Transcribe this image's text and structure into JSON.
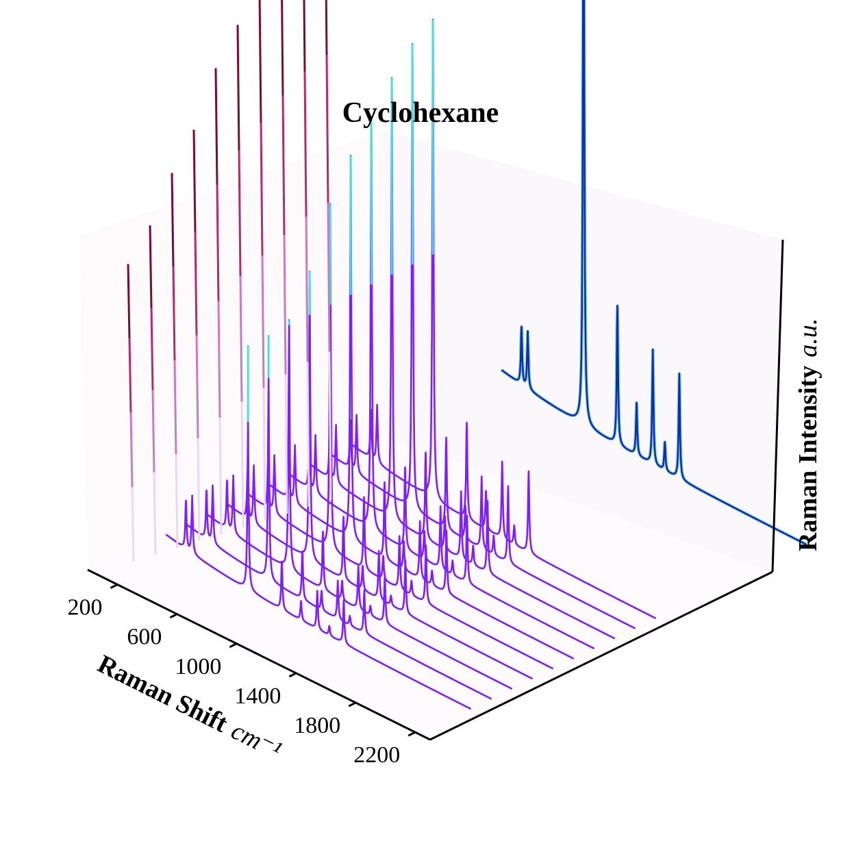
{
  "chart_data": {
    "type": "line",
    "title": "Cyclohexane",
    "xlabel": "Raman Shift",
    "xlabel_unit": "cm⁻¹",
    "zlabel": "Raman Intensity",
    "zlabel_unit": "a.u.",
    "x_ticks": [
      200,
      600,
      1000,
      1400,
      1800,
      2200
    ],
    "xlim": [
      0,
      2300
    ],
    "grid": false,
    "legend": "none",
    "peaks": [
      {
        "shift": 384,
        "intensity": 0.12
      },
      {
        "shift": 426,
        "intensity": 0.12
      },
      {
        "shift": 801,
        "intensity": 1.0
      },
      {
        "shift": 1028,
        "intensity": 0.22
      },
      {
        "shift": 1157,
        "intensity": 0.09
      },
      {
        "shift": 1266,
        "intensity": 0.18
      },
      {
        "shift": 1347,
        "intensity": 0.05
      },
      {
        "shift": 1444,
        "intensity": 0.2
      }
    ],
    "series": [
      {
        "color": "#7f1fff",
        "values": [
          0.1,
          0.12,
          0.35,
          0.1,
          0.04,
          0.08,
          0.02,
          0.09
        ]
      },
      {
        "color": "#7f1fff",
        "values": [
          0.1,
          0.12,
          0.42,
          0.1,
          0.04,
          0.08,
          0.02,
          0.09
        ]
      },
      {
        "color": "#7f1fff",
        "values": [
          0.1,
          0.12,
          0.52,
          0.12,
          0.04,
          0.09,
          0.02,
          0.1
        ]
      },
      {
        "color": "#7f1fff",
        "values": [
          0.1,
          0.12,
          0.6,
          0.13,
          0.05,
          0.1,
          0.02,
          0.11
        ]
      },
      {
        "color": "#7f1fff",
        "values": [
          0.1,
          0.12,
          0.72,
          0.15,
          0.05,
          0.11,
          0.03,
          0.12
        ]
      },
      {
        "color": "#7f1fff",
        "values": [
          0.1,
          0.12,
          0.8,
          0.16,
          0.06,
          0.12,
          0.03,
          0.13
        ]
      },
      {
        "color": "#7f1fff",
        "values": [
          0.1,
          0.12,
          0.86,
          0.17,
          0.06,
          0.13,
          0.03,
          0.14
        ]
      },
      {
        "color": "#7f1fff",
        "values": [
          0.1,
          0.12,
          0.92,
          0.18,
          0.07,
          0.14,
          0.04,
          0.15
        ]
      },
      {
        "color": "#7f1fff",
        "values": [
          0.1,
          0.12,
          0.97,
          0.19,
          0.07,
          0.15,
          0.04,
          0.16
        ]
      },
      {
        "color": "#7f1fff",
        "values": [
          0.1,
          0.12,
          1.0,
          0.2,
          0.08,
          0.16,
          0.04,
          0.17
        ]
      },
      {
        "color": "#0a2fbf",
        "values": [
          0.12,
          0.12,
          1.38,
          0.29,
          0.11,
          0.24,
          0.06,
          0.22
        ]
      }
    ]
  }
}
